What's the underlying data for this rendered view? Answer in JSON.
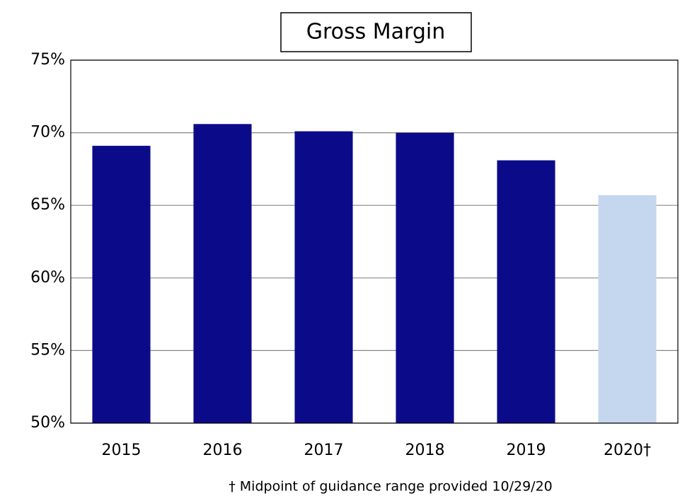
{
  "chart_data": {
    "type": "bar",
    "title": "Gross Margin",
    "categories": [
      "2015",
      "2016",
      "2017",
      "2018",
      "2019",
      "2020†"
    ],
    "values": [
      69.1,
      70.6,
      70.1,
      70.0,
      68.1,
      65.7
    ],
    "colors": [
      "#0b0b8a",
      "#0b0b8a",
      "#0b0b8a",
      "#0b0b8a",
      "#0b0b8a",
      "#c5d7ee"
    ],
    "ylim": [
      50,
      75
    ],
    "yticks": [
      {
        "value": 50,
        "label": "50%"
      },
      {
        "value": 55,
        "label": "55%"
      },
      {
        "value": 60,
        "label": "60%"
      },
      {
        "value": 65,
        "label": "65%"
      },
      {
        "value": 70,
        "label": "70%"
      },
      {
        "value": 75,
        "label": "75%"
      }
    ],
    "grid": true,
    "footnote": "† Midpoint of guidance range provided 10/29/20"
  }
}
